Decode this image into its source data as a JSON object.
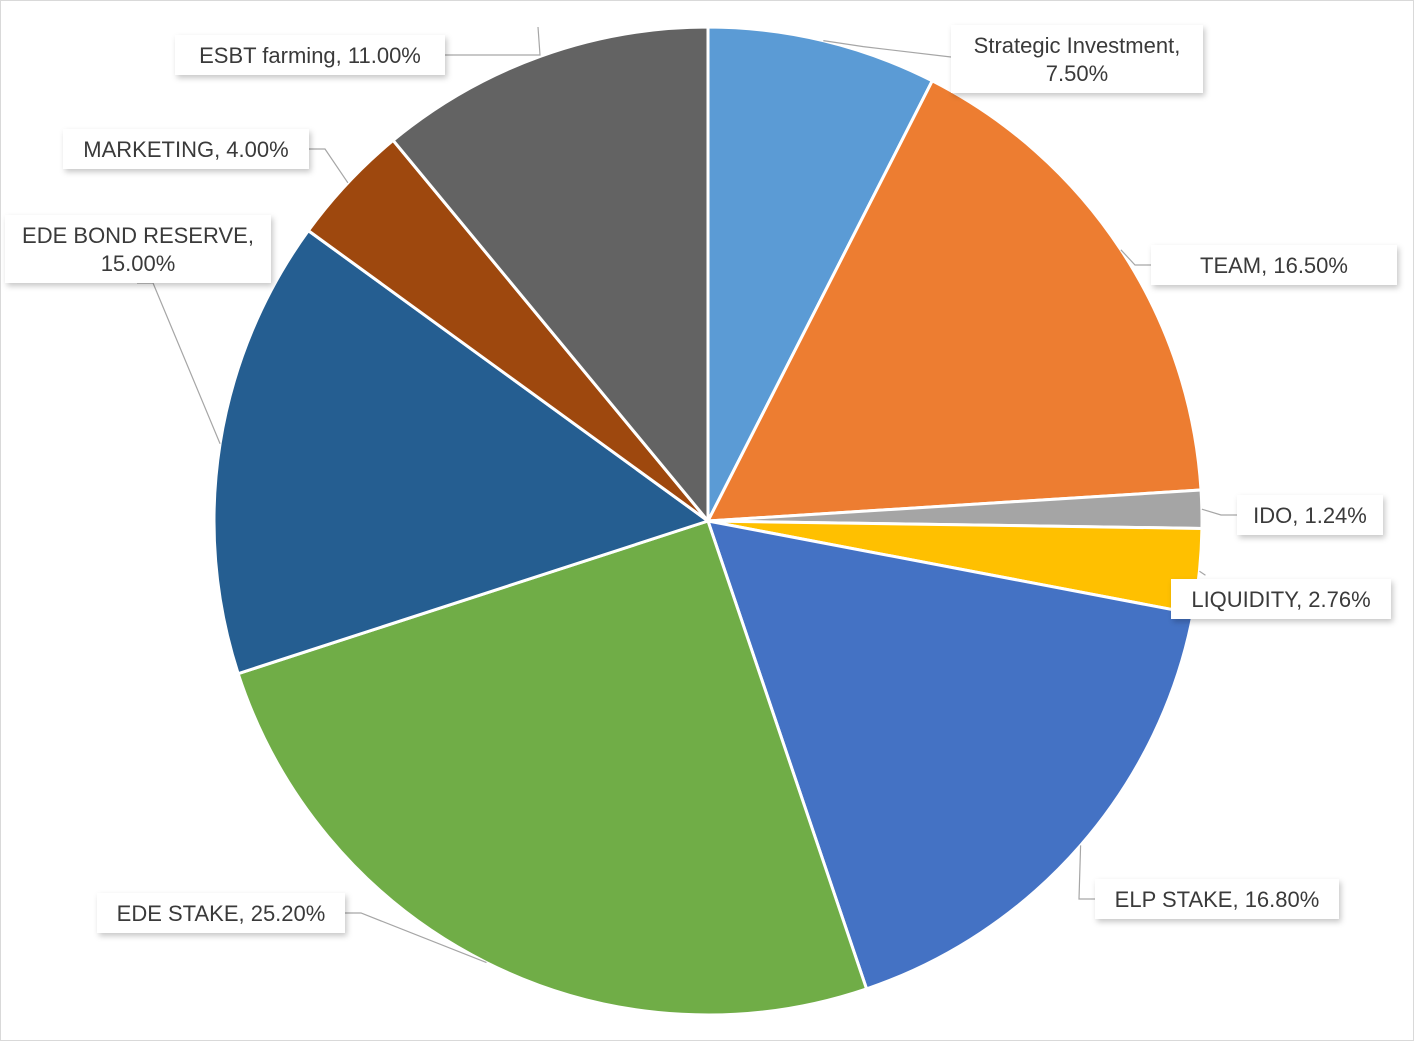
{
  "chart_data": {
    "type": "pie",
    "title": "",
    "start_angle": "top",
    "direction": "clockwise",
    "legend": "none",
    "slices": [
      {
        "label": "Strategic Investment",
        "value": 7.5,
        "display": "Strategic Investment, 7.50%",
        "color": "#5B9BD5"
      },
      {
        "label": "TEAM",
        "value": 16.5,
        "display": "TEAM, 16.50%",
        "color": "#ED7D31"
      },
      {
        "label": "IDO",
        "value": 1.24,
        "display": "IDO, 1.24%",
        "color": "#A5A5A5"
      },
      {
        "label": "LIQUIDITY",
        "value": 2.76,
        "display": "LIQUIDITY, 2.76%",
        "color": "#FFC000"
      },
      {
        "label": "ELP STAKE",
        "value": 16.8,
        "display": "ELP STAKE, 16.80%",
        "color": "#4472C4"
      },
      {
        "label": "EDE STAKE",
        "value": 25.2,
        "display": "EDE STAKE, 25.20%",
        "color": "#70AD47"
      },
      {
        "label": "EDE BOND RESERVE",
        "value": 15.0,
        "display": "EDE BOND RESERVE, 15.00%",
        "color": "#255E91"
      },
      {
        "label": "MARKETING",
        "value": 4.0,
        "display": "MARKETING, 4.00%",
        "color": "#9E480E"
      },
      {
        "label": "ESBT farming",
        "value": 11.0,
        "display": "ESBT farming, 11.00%",
        "color": "#636363"
      }
    ]
  }
}
